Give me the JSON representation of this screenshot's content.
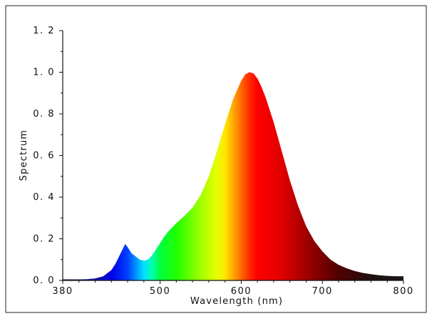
{
  "chart_data": {
    "type": "area",
    "title": "",
    "xlabel": "Wavelength (nm)",
    "ylabel": "Spectrum",
    "xlim": [
      380,
      800
    ],
    "ylim": [
      0,
      1.2
    ],
    "x_ticks": [
      380,
      500,
      600,
      700,
      800
    ],
    "y_ticks": [
      0,
      0.2,
      0.4,
      0.6,
      0.8,
      1.0,
      1.2
    ],
    "x_tick_labels": [
      "380",
      "500",
      "600",
      "700",
      "800"
    ],
    "y_tick_labels": [
      "0. 0",
      "0. 2",
      "0. 4",
      "0. 6",
      "0. 8",
      "1. 0",
      "1. 2"
    ],
    "grid": false,
    "fill": "visible-spectrum gradient",
    "series": [
      {
        "x": [
          380,
          400,
          410,
          420,
          430,
          440,
          445,
          450,
          455,
          457,
          460,
          465,
          470,
          475,
          480,
          485,
          490,
          495,
          500,
          505,
          510,
          515,
          520,
          530,
          540,
          550,
          560,
          570,
          580,
          590,
          600,
          605,
          610,
          615,
          620,
          625,
          630,
          640,
          650,
          660,
          670,
          680,
          690,
          700,
          710,
          720,
          730,
          740,
          750,
          760,
          770,
          780,
          790,
          800
        ],
        "y": [
          0.005,
          0.005,
          0.006,
          0.01,
          0.02,
          0.05,
          0.08,
          0.12,
          0.16,
          0.175,
          0.16,
          0.13,
          0.115,
          0.1,
          0.095,
          0.1,
          0.12,
          0.15,
          0.18,
          0.21,
          0.235,
          0.255,
          0.275,
          0.31,
          0.35,
          0.41,
          0.5,
          0.62,
          0.75,
          0.87,
          0.96,
          0.99,
          1.0,
          0.995,
          0.97,
          0.93,
          0.88,
          0.76,
          0.62,
          0.48,
          0.36,
          0.26,
          0.19,
          0.14,
          0.1,
          0.075,
          0.058,
          0.045,
          0.036,
          0.03,
          0.025,
          0.022,
          0.02,
          0.02
        ]
      }
    ]
  }
}
